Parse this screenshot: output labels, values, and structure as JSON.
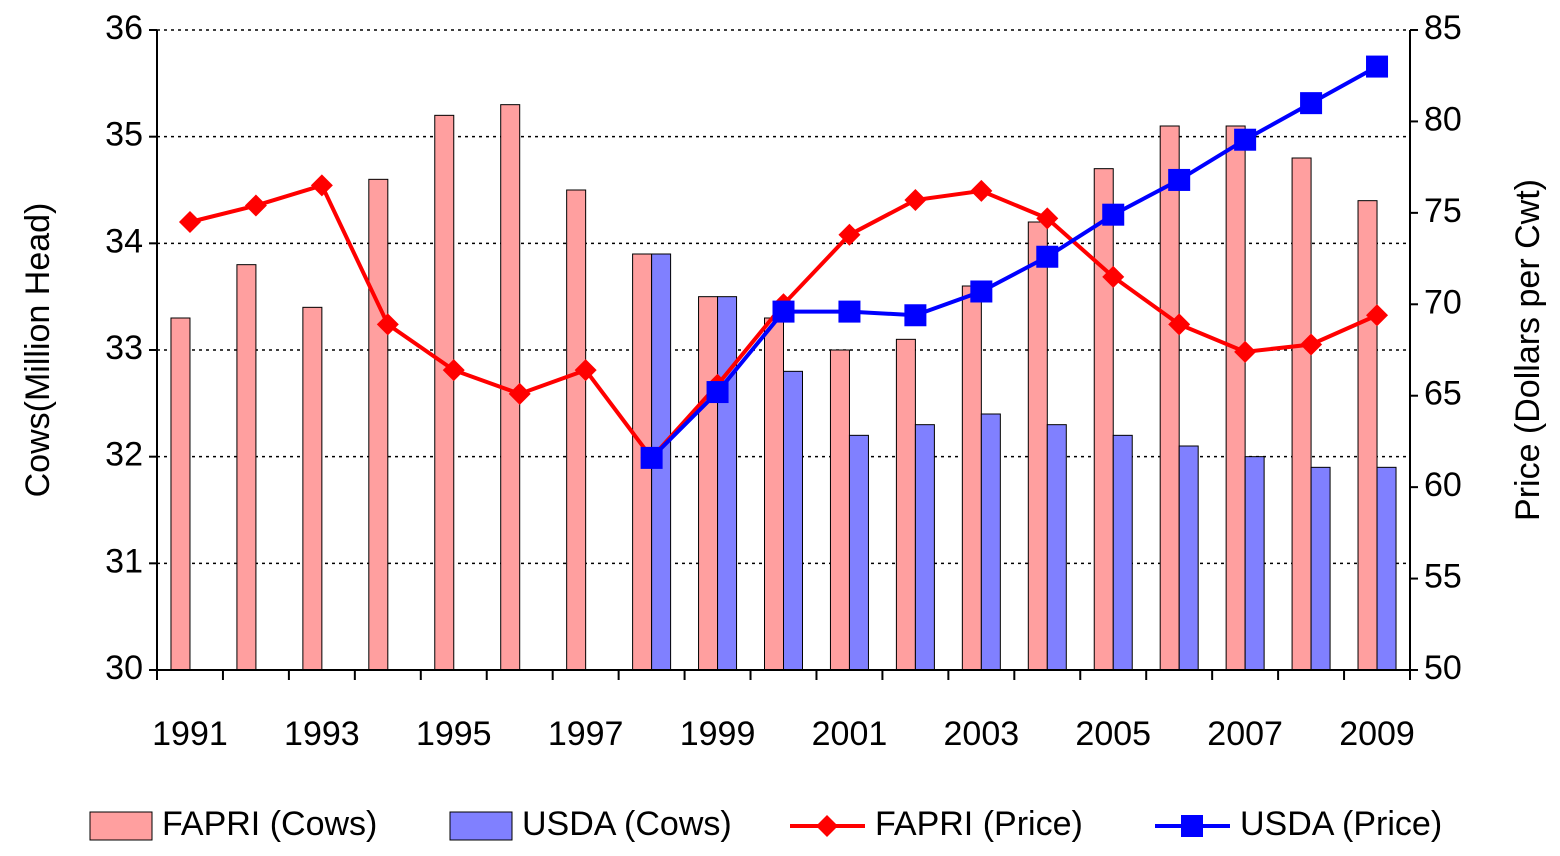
{
  "chart_data": {
    "type": "bar_line",
    "y_label": "Cows(Million Head)",
    "y2_label": "Price (Dollars per Cwt)",
    "categories": [
      "1991",
      null,
      "1993",
      null,
      "1995",
      null,
      "1997",
      null,
      "1999",
      null,
      "2001",
      null,
      "2003",
      null,
      "2005",
      null,
      "2007",
      null,
      "2009"
    ],
    "ylim": [
      30,
      36
    ],
    "yticks": [
      30,
      31,
      32,
      33,
      34,
      35,
      36
    ],
    "y2lim": [
      50,
      85
    ],
    "y2ticks": [
      50,
      55,
      60,
      65,
      70,
      75,
      80,
      85
    ],
    "grid": true,
    "legend": "bottom",
    "series": [
      {
        "name": "FAPRI (Cows)",
        "type": "bar",
        "color": "#ff9f9f",
        "values": [
          33.3,
          33.8,
          33.4,
          34.6,
          35.2,
          35.3,
          34.5,
          33.9,
          33.5,
          33.3,
          33.0,
          33.1,
          33.6,
          34.2,
          34.7,
          35.1,
          35.1,
          34.8,
          34.4
        ]
      },
      {
        "name": "USDA (Cows)",
        "type": "bar",
        "color": "#8080ff",
        "values": [
          null,
          null,
          null,
          null,
          null,
          null,
          null,
          33.9,
          33.5,
          32.8,
          32.2,
          32.3,
          32.4,
          32.3,
          32.2,
          32.1,
          32.0,
          31.9,
          31.9
        ]
      },
      {
        "name": "FAPRI (Price)",
        "type": "line",
        "axis": "y2",
        "color": "#ff0000",
        "marker": "diamond",
        "values": [
          74.5,
          75.4,
          76.5,
          68.9,
          66.4,
          65.1,
          66.4,
          61.6,
          65.6,
          70.0,
          73.8,
          75.7,
          76.2,
          74.7,
          71.5,
          68.9,
          67.4,
          67.8,
          69.4
        ]
      },
      {
        "name": "USDA (Price)",
        "type": "line",
        "axis": "y2",
        "color": "#0000ff",
        "marker": "square",
        "values": [
          null,
          null,
          null,
          null,
          null,
          null,
          null,
          61.6,
          65.2,
          69.6,
          69.6,
          69.4,
          70.7,
          72.6,
          74.9,
          76.8,
          79.0,
          81.0,
          83.0
        ]
      }
    ]
  }
}
